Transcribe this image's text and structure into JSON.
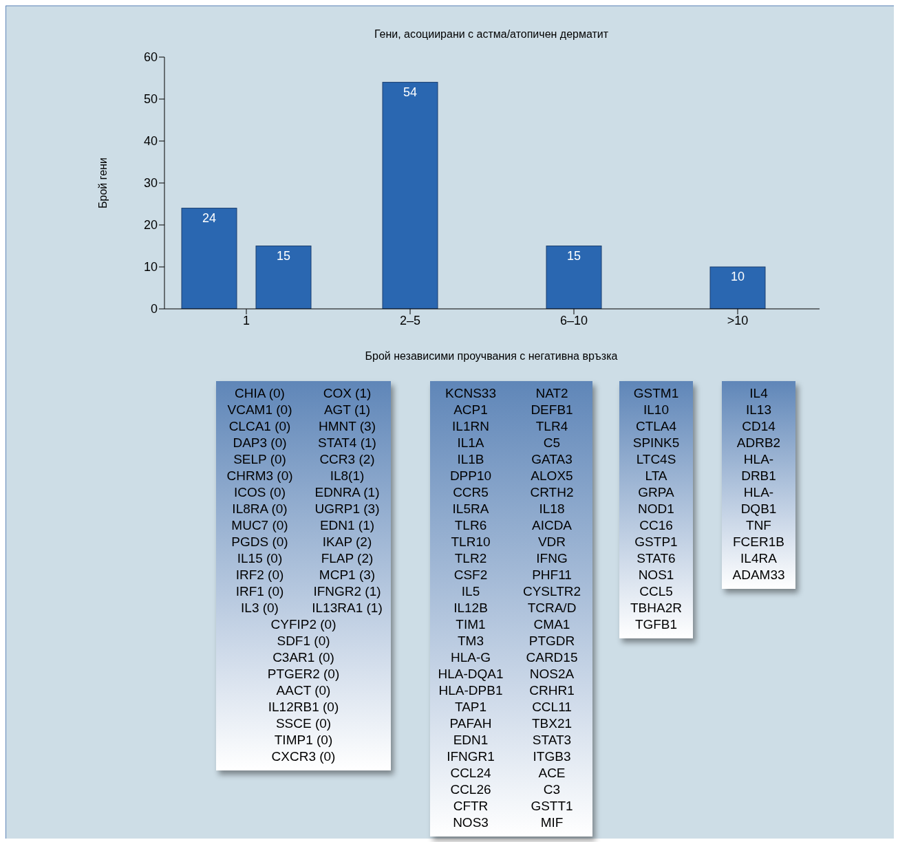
{
  "chart_data": [
    {
      "type": "bar",
      "title": "Гени, асоциирани с астма/атопичен дерматит",
      "xlabel": "Брой независими проучвания с негативна връзка",
      "ylabel": "Брой гени",
      "categories": [
        "1",
        "2–5",
        "6–10",
        ">10"
      ],
      "series": [
        {
          "color": "#2a67b1",
          "values": [
            24,
            54,
            15,
            10
          ]
        },
        {
          "color": "#2a67b1",
          "values": [
            15,
            null,
            null,
            null
          ]
        }
      ],
      "ylim": [
        0,
        60
      ],
      "yticks": [
        0,
        10,
        20,
        30,
        40,
        50,
        60
      ],
      "data_labels": true
    },
    {
      "type": "other",
      "annotations": [
        "CHIA (0)",
        "COX (1)",
        "VCAM1 (0)",
        "AGT (1)",
        "CLCA1 (0)",
        "HMNT (3)",
        "DAP3 (0)",
        "STAT4 (1)",
        "SELP (0)",
        "CCR3 (2)",
        "CHRM3 (0)",
        "IL8(1)",
        "ICOS (0)",
        "EDNRA (1)",
        "IL8RA (0)",
        "UGRP1 (3)",
        "MUC7 (0)",
        "EDN1 (1)",
        "PGDS (0)",
        "IKAP (2)",
        "IL15 (0)",
        "FLAP (2)",
        "IRF2 (0)",
        "MCP1 (3)",
        "IRF1 (0)",
        "IFNGR2 (1)",
        "IL3 (0)",
        "IL13RA1 (1)",
        "CYFIP2 (0)",
        "SDF1 (0)",
        "C3AR1 (0)",
        "PTGER2 (0)",
        "AACT (0)",
        "IL12RB1 (0)",
        "SSCE (0)",
        "TIMP1 (0)",
        "CXCR3 (0)"
      ]
    },
    {
      "type": "other",
      "annotations": [
        "KCNS33",
        "NAT2",
        "ACP1",
        "DEFB1",
        "IL1RN",
        "TLR4",
        "IL1A",
        "C5",
        "IL1B",
        "GATA3",
        "DPP10",
        "ALOX5",
        "CCR5",
        "CRTH2",
        "IL5RA",
        "IL18",
        "TLR6",
        "AICDA",
        "TLR10",
        "VDR",
        "TLR2",
        "IFNG",
        "CSF2",
        "PHF11",
        "IL5",
        "CYSLTR2",
        "IL12B",
        "TCRA/D",
        "TIM1",
        "CMA1",
        "TM3",
        "PTGDR",
        "HLA-G",
        "CARD15",
        "HLA-DQA1",
        "NOS2A",
        "HLA-DPB1",
        "CRHR1",
        "TAP1",
        "CCL11",
        "PAFAH",
        "TBX21",
        "EDN1",
        "STAT3",
        "IFNGR1",
        "ITGB3",
        "CCL24",
        "ACE",
        "CCL26",
        "C3",
        "CFTR",
        "GSTT1",
        "NOS3",
        "MIF"
      ]
    },
    {
      "type": "other",
      "annotations": [
        "GSTM1",
        "IL10",
        "CTLA4",
        "SPINK5",
        "LTC4S",
        "LTA",
        "GRPA",
        "NOD1",
        "CC16",
        "GSTP1",
        "STAT6",
        "NOS1",
        "CCL5",
        "TBHA2R",
        "TGFB1"
      ]
    },
    {
      "type": "other",
      "annotations": [
        "IL4",
        "IL13",
        "CD14",
        "ADRB2",
        "HLA-",
        "DRB1",
        "HLA-",
        "DQB1",
        "TNF",
        "FCER1B",
        "IL4RA",
        "ADAM33"
      ]
    }
  ]
}
